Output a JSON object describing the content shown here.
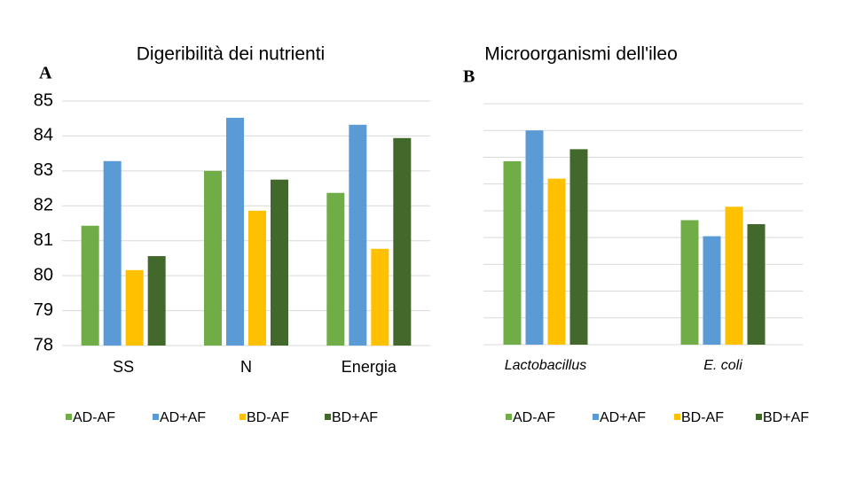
{
  "chart_data": [
    {
      "type": "bar",
      "panel_label": "A",
      "title": "Digeribilità dei nutrienti",
      "categories": [
        "SS",
        "N",
        "Energia"
      ],
      "series": [
        {
          "name": "AD-AF",
          "color": "#70ad47",
          "values": [
            81.43,
            83.0,
            82.37
          ]
        },
        {
          "name": "AD+AF",
          "color": "#5b9bd5",
          "values": [
            83.28,
            84.52,
            84.32
          ]
        },
        {
          "name": "BD-AF",
          "color": "#ffc000",
          "values": [
            80.16,
            81.86,
            80.77
          ]
        },
        {
          "name": "BD+AF",
          "color": "#43682b",
          "values": [
            80.56,
            82.75,
            83.94
          ]
        }
      ],
      "ylim": [
        78,
        85
      ],
      "yticks": [
        78,
        79,
        80,
        81,
        82,
        83,
        84,
        85
      ],
      "tick_labels": true,
      "grid": true,
      "legend": "bottom"
    },
    {
      "type": "bar",
      "panel_label": "B",
      "title": "Microorganismi dell'ileo",
      "categories": [
        "Lactobacillus",
        "E. coli"
      ],
      "series": [
        {
          "name": "AD-AF",
          "color": "#70ad47",
          "values": [
            6.85,
            4.65
          ]
        },
        {
          "name": "AD+AF",
          "color": "#5b9bd5",
          "values": [
            8.0,
            4.05
          ]
        },
        {
          "name": "BD-AF",
          "color": "#ffc000",
          "values": [
            6.2,
            5.15
          ]
        },
        {
          "name": "BD+AF",
          "color": "#43682b",
          "values": [
            7.3,
            4.5
          ]
        }
      ],
      "ylim": [
        0,
        9
      ],
      "yticks": [
        0,
        1,
        2,
        3,
        4,
        5,
        6,
        7,
        8,
        9
      ],
      "tick_labels": false,
      "grid": true,
      "legend": "bottom"
    }
  ]
}
